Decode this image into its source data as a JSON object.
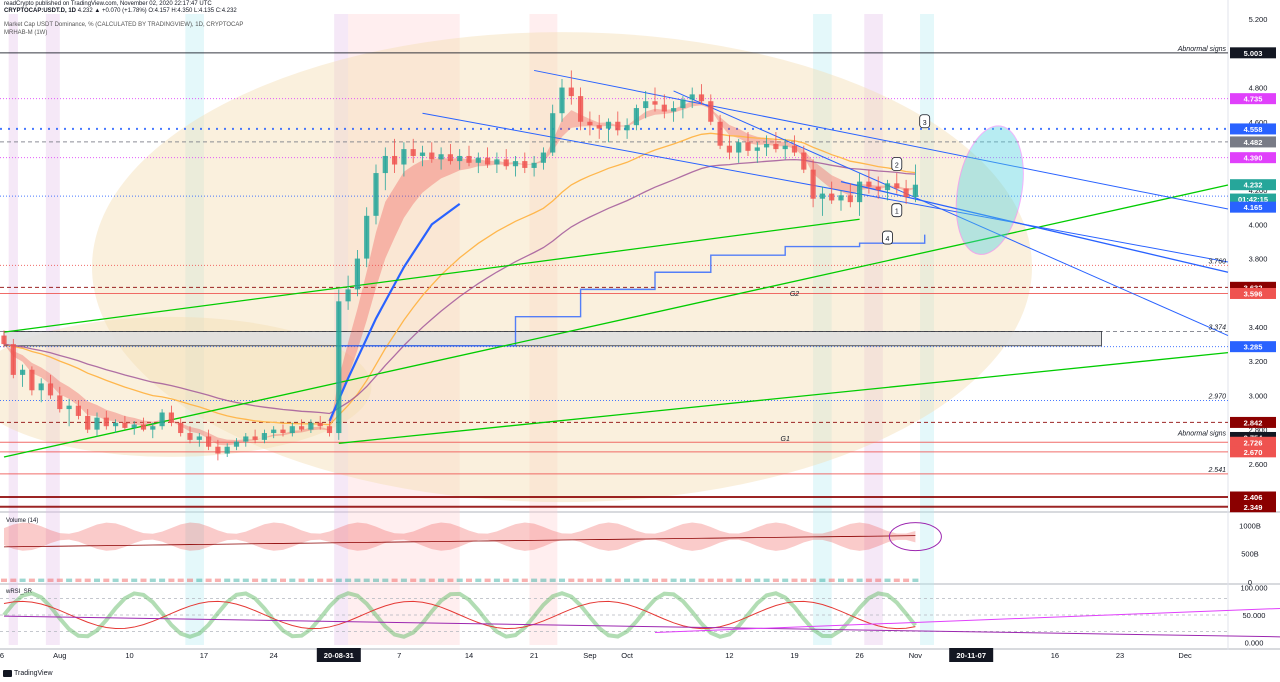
{
  "header": {
    "publisher": "readCrypto published on TradingView.com, November 02, 2020 22:17:47 UTC",
    "symbol": "CRYPTOCAP:USDT.D, 1D",
    "ohlc": "4.232 ▲ +0.070 (+1.78%) O:4.157 H:4.350 L:4.135 C:4.232",
    "title": "Market Cap USDT Dominance, % (CALCULATED BY TRADINGVIEW), 1D, CRYPTOCAP",
    "indicator": "MRHAB-M (1W)"
  },
  "footer": {
    "brand": "TradingView"
  },
  "colors": {
    "up": "#26a69a",
    "down": "#ef5350",
    "green_line": "#00cc00",
    "blue_line": "#2962ff",
    "ema_orange": "#ffb74d",
    "ema_purple": "#9c4f96",
    "cloud": "#f5deb3"
  },
  "chart_data": [
    {
      "type": "line",
      "panel": "price",
      "yaxis": {
        "ticks": [
          "5.200",
          "5.000",
          "4.800",
          "4.600",
          "4.400",
          "4.200",
          "4.000",
          "3.800",
          "3.600",
          "3.400",
          "3.200",
          "3.000",
          "2.800",
          "2.600",
          "2.400"
        ],
        "ylim": [
          2.33,
          5.23
        ]
      },
      "xaxis": {
        "ticks": [
          "6",
          "Aug",
          "10",
          "17",
          "24",
          "20-08-31",
          "7",
          "14",
          "21",
          "Sep",
          "Oct",
          "12",
          "19",
          "26",
          "Nov",
          "20-11-07",
          "16",
          "23",
          "Dec"
        ],
        "highlighted": [
          "20-08-31",
          "20-11-07"
        ]
      },
      "price_labels": [
        {
          "value": 5.003,
          "text": "5.003",
          "bg": "#131722",
          "fg": "#ffffff"
        },
        {
          "value": 4.735,
          "text": "4.735",
          "bg": "#e040fb",
          "fg": "#ffffff"
        },
        {
          "value": 4.558,
          "text": "4.558",
          "bg": "#2962ff",
          "fg": "#ffffff"
        },
        {
          "value": 4.482,
          "text": "4.482",
          "bg": "#787b86",
          "fg": "#ffffff"
        },
        {
          "value": 4.39,
          "text": "4.390",
          "bg": "#e040fb",
          "fg": "#ffffff"
        },
        {
          "value": 4.232,
          "text": "4.232",
          "bg": "#26a69a",
          "fg": "#ffffff"
        },
        {
          "value": 4.148,
          "text": "01:42:15",
          "bg": "#26a69a",
          "fg": "#ffffff"
        },
        {
          "value": 4.165,
          "text": "4.165",
          "bg": "#2962ff",
          "fg": "#ffffff",
          "nudge": 1
        },
        {
          "value": 3.632,
          "text": "3.632",
          "bg": "#8b0000",
          "fg": "#ffffff"
        },
        {
          "value": 3.596,
          "text": "3.596",
          "bg": "#ef5350",
          "fg": "#ffffff"
        },
        {
          "value": 3.285,
          "text": "3.285",
          "bg": "#2962ff",
          "fg": "#ffffff"
        },
        {
          "value": 2.842,
          "text": "2.842",
          "bg": "#8b0000",
          "fg": "#ffffff"
        },
        {
          "value": 2.754,
          "text": "2.754",
          "bg": "#131722",
          "fg": "#ffffff"
        },
        {
          "value": 2.726,
          "text": "2.726",
          "bg": "#ef5350",
          "fg": "#ffffff"
        },
        {
          "value": 2.67,
          "text": "2.670",
          "bg": "#ef5350",
          "fg": "#ffffff"
        },
        {
          "value": 2.406,
          "text": "2.406",
          "bg": "#8b0000",
          "fg": "#ffffff"
        },
        {
          "value": 2.349,
          "text": "2.349",
          "bg": "#8b0000",
          "fg": "#ffffff"
        }
      ],
      "level_texts": [
        {
          "value": 5.003,
          "text": "Abnormal signs"
        },
        {
          "value": 2.754,
          "text": "Abnormal signs"
        },
        {
          "value": 3.76,
          "text": "3.760"
        },
        {
          "value": 3.374,
          "text": "3.374"
        },
        {
          "value": 2.97,
          "text": "2.970"
        },
        {
          "value": 2.541,
          "text": "2.541"
        }
      ],
      "zone_labels": [
        {
          "text": "G2",
          "value": 3.6,
          "day": 85
        },
        {
          "text": "G1",
          "value": 2.75,
          "day": 84
        }
      ],
      "callouts": [
        "1",
        "2",
        "3",
        "4"
      ],
      "candles": [
        [
          3.35,
          3.38,
          3.28,
          3.3
        ],
        [
          3.3,
          3.33,
          3.1,
          3.12
        ],
        [
          3.12,
          3.18,
          3.05,
          3.15
        ],
        [
          3.15,
          3.17,
          3.0,
          3.03
        ],
        [
          3.03,
          3.1,
          2.96,
          3.07
        ],
        [
          3.07,
          3.12,
          2.98,
          3.0
        ],
        [
          3.0,
          3.05,
          2.9,
          2.92
        ],
        [
          2.92,
          2.98,
          2.82,
          2.94
        ],
        [
          2.94,
          2.97,
          2.86,
          2.88
        ],
        [
          2.88,
          2.92,
          2.78,
          2.8
        ],
        [
          2.8,
          2.9,
          2.76,
          2.87
        ],
        [
          2.87,
          2.91,
          2.8,
          2.82
        ],
        [
          2.82,
          2.86,
          2.78,
          2.84
        ],
        [
          2.84,
          2.88,
          2.8,
          2.81
        ],
        [
          2.81,
          2.85,
          2.77,
          2.83
        ],
        [
          2.83,
          2.87,
          2.79,
          2.8
        ],
        [
          2.8,
          2.84,
          2.75,
          2.82
        ],
        [
          2.82,
          2.92,
          2.8,
          2.9
        ],
        [
          2.9,
          2.94,
          2.82,
          2.84
        ],
        [
          2.84,
          2.87,
          2.76,
          2.78
        ],
        [
          2.78,
          2.82,
          2.72,
          2.74
        ],
        [
          2.74,
          2.78,
          2.7,
          2.76
        ],
        [
          2.76,
          2.8,
          2.68,
          2.7
        ],
        [
          2.7,
          2.74,
          2.62,
          2.66
        ],
        [
          2.66,
          2.72,
          2.64,
          2.7
        ],
        [
          2.7,
          2.75,
          2.68,
          2.73
        ],
        [
          2.73,
          2.78,
          2.7,
          2.76
        ],
        [
          2.76,
          2.8,
          2.72,
          2.74
        ],
        [
          2.74,
          2.8,
          2.72,
          2.78
        ],
        [
          2.78,
          2.82,
          2.75,
          2.8
        ],
        [
          2.8,
          2.83,
          2.76,
          2.78
        ],
        [
          2.78,
          2.84,
          2.76,
          2.82
        ],
        [
          2.82,
          2.86,
          2.79,
          2.8
        ],
        [
          2.8,
          2.86,
          2.78,
          2.84
        ],
        [
          2.84,
          2.88,
          2.8,
          2.82
        ],
        [
          2.82,
          2.86,
          2.76,
          2.78
        ],
        [
          2.78,
          3.62,
          2.74,
          3.55
        ],
        [
          3.55,
          3.7,
          3.5,
          3.62
        ],
        [
          3.62,
          3.85,
          3.58,
          3.8
        ],
        [
          3.8,
          4.1,
          3.75,
          4.05
        ],
        [
          4.05,
          4.35,
          4.0,
          4.3
        ],
        [
          4.3,
          4.45,
          4.2,
          4.4
        ],
        [
          4.4,
          4.5,
          4.3,
          4.35
        ],
        [
          4.35,
          4.48,
          4.28,
          4.44
        ],
        [
          4.44,
          4.5,
          4.36,
          4.4
        ],
        [
          4.4,
          4.46,
          4.34,
          4.42
        ],
        [
          4.42,
          4.48,
          4.36,
          4.38
        ],
        [
          4.38,
          4.45,
          4.32,
          4.41
        ],
        [
          4.41,
          4.47,
          4.35,
          4.37
        ],
        [
          4.37,
          4.44,
          4.32,
          4.4
        ],
        [
          4.4,
          4.46,
          4.34,
          4.36
        ],
        [
          4.36,
          4.42,
          4.3,
          4.39
        ],
        [
          4.39,
          4.45,
          4.33,
          4.35
        ],
        [
          4.35,
          4.42,
          4.3,
          4.38
        ],
        [
          4.38,
          4.44,
          4.32,
          4.34
        ],
        [
          4.34,
          4.4,
          4.28,
          4.37
        ],
        [
          4.37,
          4.42,
          4.3,
          4.33
        ],
        [
          4.33,
          4.4,
          4.28,
          4.36
        ],
        [
          4.36,
          4.45,
          4.32,
          4.42
        ],
        [
          4.42,
          4.7,
          4.4,
          4.65
        ],
        [
          4.65,
          4.85,
          4.6,
          4.8
        ],
        [
          4.8,
          4.9,
          4.7,
          4.75
        ],
        [
          4.75,
          4.8,
          4.55,
          4.6
        ],
        [
          4.6,
          4.66,
          4.52,
          4.58
        ],
        [
          4.58,
          4.64,
          4.5,
          4.56
        ],
        [
          4.56,
          4.62,
          4.48,
          4.6
        ],
        [
          4.6,
          4.66,
          4.52,
          4.55
        ],
        [
          4.55,
          4.62,
          4.5,
          4.58
        ],
        [
          4.58,
          4.7,
          4.55,
          4.68
        ],
        [
          4.68,
          4.78,
          4.62,
          4.72
        ],
        [
          4.72,
          4.8,
          4.66,
          4.7
        ],
        [
          4.7,
          4.76,
          4.62,
          4.66
        ],
        [
          4.66,
          4.72,
          4.6,
          4.68
        ],
        [
          4.68,
          4.75,
          4.62,
          4.73
        ],
        [
          4.73,
          4.8,
          4.68,
          4.76
        ],
        [
          4.76,
          4.82,
          4.7,
          4.72
        ],
        [
          4.72,
          4.76,
          4.58,
          4.6
        ],
        [
          4.6,
          4.64,
          4.44,
          4.46
        ],
        [
          4.46,
          4.52,
          4.38,
          4.42
        ],
        [
          4.42,
          4.5,
          4.36,
          4.48
        ],
        [
          4.48,
          4.54,
          4.4,
          4.43
        ],
        [
          4.43,
          4.48,
          4.36,
          4.45
        ],
        [
          4.45,
          4.52,
          4.4,
          4.47
        ],
        [
          4.47,
          4.54,
          4.42,
          4.44
        ],
        [
          4.44,
          4.5,
          4.38,
          4.46
        ],
        [
          4.46,
          4.52,
          4.4,
          4.42
        ],
        [
          4.42,
          4.46,
          4.3,
          4.32
        ],
        [
          4.32,
          4.38,
          4.1,
          4.15
        ],
        [
          4.15,
          4.22,
          4.05,
          4.18
        ],
        [
          4.18,
          4.25,
          4.12,
          4.14
        ],
        [
          4.14,
          4.2,
          4.08,
          4.17
        ],
        [
          4.17,
          4.24,
          4.1,
          4.13
        ],
        [
          4.13,
          4.3,
          4.05,
          4.25
        ],
        [
          4.25,
          4.32,
          4.18,
          4.22
        ],
        [
          4.22,
          4.28,
          4.15,
          4.2
        ],
        [
          4.2,
          4.26,
          4.14,
          4.24
        ],
        [
          4.24,
          4.3,
          4.18,
          4.21
        ],
        [
          4.21,
          4.26,
          4.12,
          4.16
        ],
        [
          4.16,
          4.35,
          4.13,
          4.232
        ]
      ]
    },
    {
      "type": "area",
      "panel": "volume",
      "title": "Volume (14)",
      "ticks": [
        "1000B",
        "500B",
        "0"
      ],
      "ylim": [
        0,
        1200
      ]
    },
    {
      "type": "line",
      "panel": "rsi",
      "title": "wRSI_SR",
      "ticks": [
        "100.000",
        "50.000",
        "0.000"
      ],
      "ylim": [
        -5,
        105
      ]
    }
  ]
}
